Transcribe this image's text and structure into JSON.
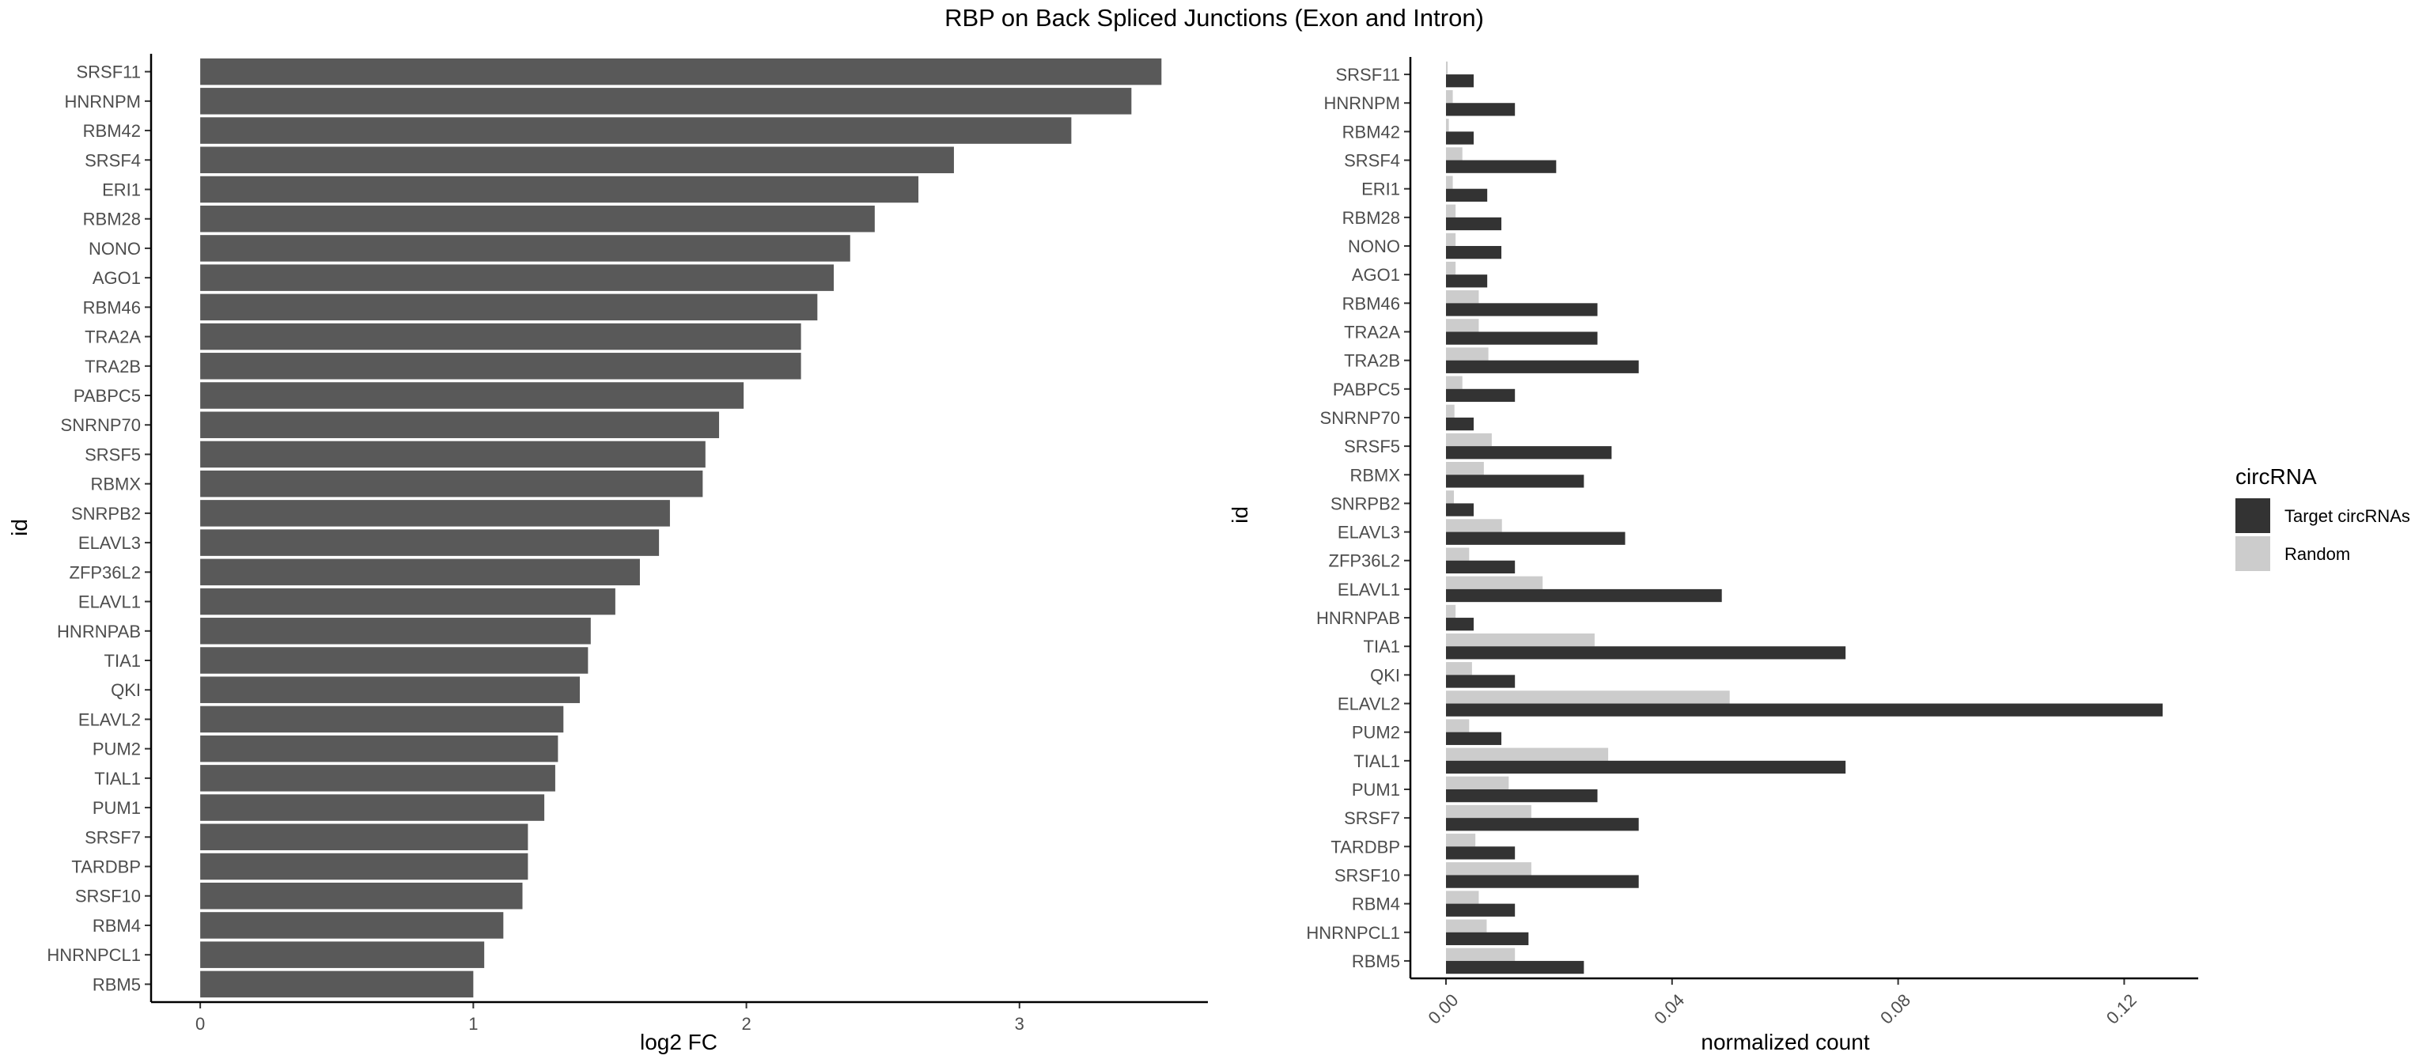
{
  "title": "RBP on Back Spliced Junctions (Exon and Intron)",
  "chart_data": [
    {
      "type": "bar",
      "orientation": "horizontal",
      "categories": [
        "SRSF11",
        "HNRNPM",
        "RBM42",
        "SRSF4",
        "ERI1",
        "RBM28",
        "NONO",
        "AGO1",
        "RBM46",
        "TRA2A",
        "TRA2B",
        "PABPC5",
        "SNRNP70",
        "SRSF5",
        "RBMX",
        "SNRPB2",
        "ELAVL3",
        "ZFP36L2",
        "ELAVL1",
        "HNRNPAB",
        "TIA1",
        "QKI",
        "ELAVL2",
        "PUM2",
        "TIAL1",
        "PUM1",
        "SRSF7",
        "TARDBP",
        "SRSF10",
        "RBM4",
        "HNRNPCL1",
        "RBM5"
      ],
      "values": [
        3.52,
        3.41,
        3.19,
        2.76,
        2.63,
        2.47,
        2.38,
        2.32,
        2.26,
        2.2,
        2.2,
        1.99,
        1.9,
        1.85,
        1.84,
        1.72,
        1.68,
        1.61,
        1.52,
        1.43,
        1.42,
        1.39,
        1.33,
        1.31,
        1.3,
        1.26,
        1.2,
        1.2,
        1.18,
        1.11,
        1.04,
        1.0
      ],
      "xlabel": "log2 FC",
      "ylabel": "id",
      "xlim": [
        -0.18,
        3.69
      ],
      "xticks": [
        "0",
        "1",
        "2",
        "3"
      ],
      "bar_color": "#595959",
      "grid": false
    },
    {
      "type": "bar",
      "orientation": "horizontal",
      "grouped": true,
      "categories": [
        "SRSF11",
        "HNRNPM",
        "RBM42",
        "SRSF4",
        "ERI1",
        "RBM28",
        "NONO",
        "AGO1",
        "RBM46",
        "TRA2A",
        "TRA2B",
        "PABPC5",
        "SNRNP70",
        "SRSF5",
        "RBMX",
        "SNRPB2",
        "ELAVL3",
        "ZFP36L2",
        "ELAVL1",
        "HNRNPAB",
        "TIA1",
        "QKI",
        "ELAVL2",
        "PUM2",
        "TIAL1",
        "PUM1",
        "SRSF7",
        "TARDBP",
        "SRSF10",
        "RBM4",
        "HNRNPCL1",
        "RBM5"
      ],
      "series": [
        {
          "name": "Random",
          "color": "#cccccc",
          "values": [
            0.0003,
            0.0012,
            0.0005,
            0.0029,
            0.0012,
            0.0017,
            0.0017,
            0.0017,
            0.0058,
            0.0058,
            0.0075,
            0.0029,
            0.0015,
            0.0081,
            0.0067,
            0.0014,
            0.0099,
            0.0041,
            0.0171,
            0.0017,
            0.0263,
            0.0046,
            0.0502,
            0.0041,
            0.0287,
            0.0111,
            0.0151,
            0.0052,
            0.0151,
            0.0058,
            0.0072,
            0.0122
          ]
        },
        {
          "name": "Target circRNAs",
          "color": "#333333",
          "values": [
            0.0049,
            0.0122,
            0.0049,
            0.0195,
            0.0073,
            0.0098,
            0.0098,
            0.0073,
            0.0268,
            0.0268,
            0.0341,
            0.0122,
            0.0049,
            0.0293,
            0.0244,
            0.0049,
            0.0317,
            0.0122,
            0.0488,
            0.0049,
            0.0707,
            0.0122,
            0.1268,
            0.0098,
            0.0707,
            0.0268,
            0.0341,
            0.0122,
            0.0341,
            0.0122,
            0.0146,
            0.0244
          ]
        }
      ],
      "xlabel": "normalized count",
      "ylabel": "id",
      "xlim": [
        -0.0063,
        0.1331
      ],
      "xticks": [
        "0.00",
        "0.04",
        "0.08",
        "0.12"
      ],
      "xtick_rotation": -45,
      "grid": false
    }
  ],
  "legend": {
    "title": "circRNA",
    "position": "right",
    "items": [
      {
        "label": "Target circRNAs",
        "color": "#333333"
      },
      {
        "label": "Random",
        "color": "#cccccc"
      }
    ]
  }
}
